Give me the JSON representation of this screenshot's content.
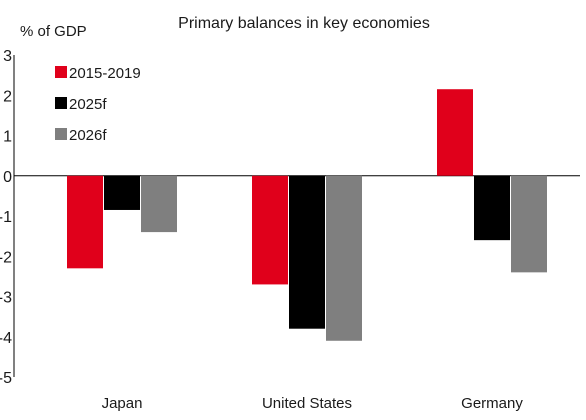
{
  "chart_data": {
    "type": "bar",
    "title": "Primary balances in key economies",
    "ylabel": "% of GDP",
    "xlabel": "",
    "categories": [
      "Japan",
      "United States",
      "Germany"
    ],
    "series": [
      {
        "name": "2015-2019",
        "color": "#e0001b",
        "values": [
          -2.3,
          -2.7,
          2.15
        ]
      },
      {
        "name": "2025f",
        "color": "#000000",
        "values": [
          -0.85,
          -3.8,
          -1.6
        ]
      },
      {
        "name": "2026f",
        "color": "#7f7f7f",
        "values": [
          -1.4,
          -4.1,
          -2.4
        ]
      }
    ],
    "ylim": [
      -5,
      3
    ],
    "yticks": [
      "3",
      "2",
      "1",
      "0",
      "-1",
      "-2",
      "-3",
      "-4",
      "-5"
    ],
    "legend_position": "top-left",
    "grid": false
  }
}
